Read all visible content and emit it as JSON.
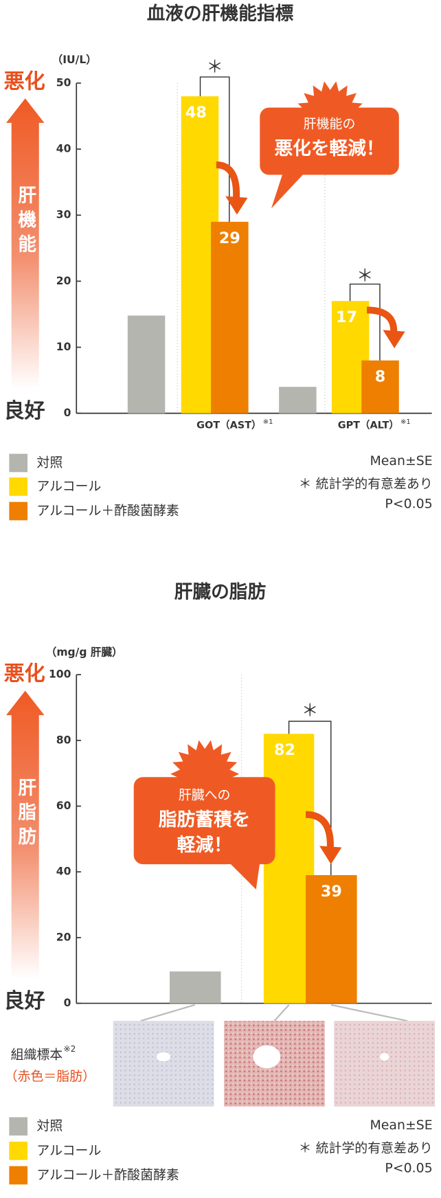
{
  "chart_data": [
    {
      "type": "bar",
      "title": "血液の肝機能指標",
      "unit_label": "（IU/L）",
      "scale_top": "悪化",
      "scale_bottom": "良好",
      "scale_label": "肝機能",
      "callout": [
        "肝機能の",
        "悪化を軽減！"
      ],
      "significance": "＊",
      "categories": [
        "GOT（AST）",
        "GPT（ALT）"
      ],
      "category_notes": [
        "※1",
        "※1"
      ],
      "series": [
        {
          "name": "対照",
          "color": "#b5b5b0",
          "values": [
            14.8,
            4
          ]
        },
        {
          "name": "アルコール",
          "color": "#ffd900",
          "values": [
            48,
            17
          ]
        },
        {
          "name": "アルコール＋酢酸菌酵素",
          "color": "#ee7f00",
          "values": [
            29,
            8
          ]
        }
      ],
      "ylim": [
        0,
        50
      ],
      "yticks": [
        0,
        10,
        20,
        30,
        40,
        50
      ],
      "grid": false,
      "notes": [
        "Mean±SE",
        "＊ 統計学的有意差あり",
        "P<0.05"
      ]
    },
    {
      "type": "bar",
      "title": "肝臓の脂肪",
      "unit_label": "（mg/g 肝臓）",
      "scale_top": "悪化",
      "scale_bottom": "良好",
      "scale_label": "肝脂肪",
      "callout": [
        "肝臓への",
        "脂肪蓄積を",
        "軽減！"
      ],
      "significance": "＊",
      "categories": [
        null
      ],
      "series": [
        {
          "name": "対照",
          "color": "#b5b5b0",
          "values": [
            9.7
          ]
        },
        {
          "name": "アルコール",
          "color": "#ffd900",
          "values": [
            82
          ]
        },
        {
          "name": "アルコール＋酢酸菌酵素",
          "color": "#ee7f00",
          "values": [
            39
          ]
        }
      ],
      "ylim": [
        0,
        100
      ],
      "yticks": [
        0,
        20,
        40,
        60,
        80,
        100
      ],
      "grid": false,
      "specimen_label": "組織標本",
      "specimen_note": "※2",
      "specimen_caption": "（赤色＝脂肪）",
      "notes": [
        "Mean±SE",
        "＊ 統計学的有意差あり",
        "P<0.05"
      ]
    }
  ]
}
